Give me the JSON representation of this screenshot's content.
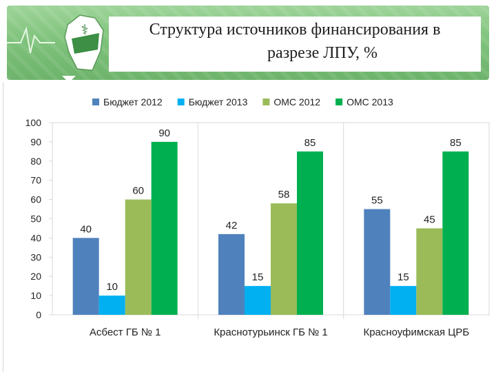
{
  "header": {
    "title_line1": "Структура источников финансирования в",
    "title_line2": "разрезе ЛПУ, %"
  },
  "colors": {
    "banner": "#7fc37c",
    "budget2012": "#4f81bd",
    "budget2013": "#00b0f0",
    "oms2012": "#9bbb59",
    "oms2013": "#00b050"
  },
  "chart_data": {
    "type": "bar",
    "categories": [
      "Асбест ГБ № 1",
      "Краснотурьинск ГБ № 1",
      "Красноуфимская ЦРБ"
    ],
    "series": [
      {
        "name": "Бюджет 2012",
        "values": [
          40,
          42,
          55
        ],
        "color": "#4f81bd"
      },
      {
        "name": "Бюджет 2013",
        "values": [
          10,
          15,
          15
        ],
        "color": "#00b0f0"
      },
      {
        "name": "ОМС 2012",
        "values": [
          60,
          58,
          45
        ],
        "color": "#9bbb59"
      },
      {
        "name": "ОМС 2013",
        "values": [
          90,
          85,
          85
        ],
        "color": "#00b050"
      }
    ],
    "ylim": [
      0,
      100
    ],
    "yticks": [
      0,
      10,
      20,
      30,
      40,
      50,
      60,
      70,
      80,
      90,
      100
    ],
    "legend": "top",
    "grid": false
  }
}
